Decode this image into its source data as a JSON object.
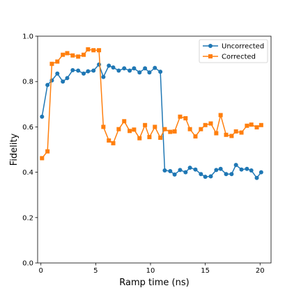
{
  "chart_data": {
    "type": "line",
    "title": "",
    "xlabel": "Ramp time (ns)",
    "ylabel": "Fidelity",
    "xlim": [
      -0.3,
      21.0
    ],
    "ylim": [
      0.0,
      1.0
    ],
    "xticks": [
      0,
      5,
      10,
      15,
      20
    ],
    "yticks": [
      0.0,
      0.2,
      0.4,
      0.6,
      0.8,
      1.0
    ],
    "xtick_labels": [
      "0",
      "5",
      "10",
      "15",
      "20"
    ],
    "ytick_labels": [
      "0.0",
      "0.2",
      "0.4",
      "0.6",
      "0.8",
      "1.0"
    ],
    "grid": false,
    "legend_position": "top-right",
    "x": [
      0.1,
      0.6,
      1.0,
      1.5,
      2.0,
      2.4,
      2.9,
      3.4,
      3.9,
      4.3,
      4.8,
      5.3,
      5.7,
      6.2,
      6.6,
      7.1,
      7.6,
      8.1,
      8.5,
      9.0,
      9.5,
      9.9,
      10.4,
      10.9,
      11.3,
      11.8,
      12.2,
      12.7,
      13.2,
      13.6,
      14.1,
      14.6,
      15.0,
      15.5,
      16.0,
      16.4,
      16.9,
      17.4,
      17.8,
      18.3,
      18.8,
      19.2,
      19.7,
      20.1
    ],
    "series": [
      {
        "name": "Uncorrected",
        "color": "#1f77b4",
        "marker": "circle",
        "values": [
          0.645,
          0.785,
          0.805,
          0.835,
          0.8,
          0.815,
          0.85,
          0.848,
          0.835,
          0.845,
          0.848,
          0.875,
          0.82,
          0.87,
          0.862,
          0.848,
          0.858,
          0.848,
          0.858,
          0.84,
          0.858,
          0.84,
          0.86,
          0.843,
          0.408,
          0.405,
          0.39,
          0.41,
          0.4,
          0.42,
          0.412,
          0.392,
          0.38,
          0.382,
          0.41,
          0.415,
          0.392,
          0.392,
          0.432,
          0.412,
          0.415,
          0.408,
          0.375,
          0.4
        ]
      },
      {
        "name": "Corrected",
        "color": "#ff7f0e",
        "marker": "square",
        "values": [
          0.462,
          0.492,
          0.878,
          0.888,
          0.918,
          0.925,
          0.915,
          0.91,
          0.918,
          0.942,
          0.938,
          0.938,
          0.6,
          0.54,
          0.528,
          0.59,
          0.625,
          0.582,
          0.588,
          0.55,
          0.608,
          0.555,
          0.6,
          0.552,
          0.59,
          0.578,
          0.58,
          0.645,
          0.638,
          0.59,
          0.558,
          0.59,
          0.608,
          0.615,
          0.572,
          0.652,
          0.565,
          0.56,
          0.58,
          0.575,
          0.605,
          0.61,
          0.598,
          0.608
        ]
      }
    ]
  }
}
